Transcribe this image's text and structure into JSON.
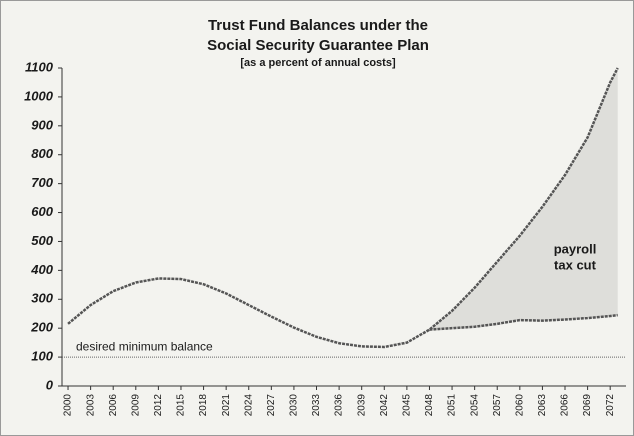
{
  "chart_data": {
    "type": "line",
    "title": [
      "Trust Fund Balances under the",
      "Social Security Guarantee Plan"
    ],
    "subtitle": "[as a percent of annual costs]",
    "x": [
      2000,
      2003,
      2006,
      2009,
      2012,
      2015,
      2018,
      2021,
      2024,
      2027,
      2030,
      2033,
      2036,
      2039,
      2042,
      2045,
      2048,
      2051,
      2054,
      2057,
      2060,
      2063,
      2066,
      2069,
      2072,
      2073
    ],
    "series": [
      {
        "color": "#555555",
        "values": [
          215,
          280,
          328,
          358,
          372,
          370,
          352,
          320,
          280,
          240,
          202,
          170,
          148,
          137,
          135,
          150,
          195,
          260,
          340,
          430,
          520,
          620,
          730,
          860,
          1050,
          1100
        ]
      },
      {
        "color": "#555555",
        "values": [
          null,
          null,
          null,
          null,
          null,
          null,
          null,
          null,
          null,
          null,
          null,
          null,
          null,
          null,
          null,
          null,
          195,
          200,
          205,
          215,
          228,
          226,
          230,
          235,
          242,
          245
        ]
      }
    ],
    "fill_between_color": "#d8d8d4",
    "reference_line": {
      "value": 100,
      "label": "desired minimum balance",
      "color": "#666666"
    },
    "annotation": [
      "payroll",
      "tax cut"
    ],
    "xlim": [
      1999.2,
      2074.1
    ],
    "xticks": [
      2000,
      2003,
      2006,
      2009,
      2012,
      2015,
      2018,
      2021,
      2024,
      2027,
      2030,
      2033,
      2036,
      2039,
      2042,
      2045,
      2048,
      2051,
      2054,
      2057,
      2060,
      2063,
      2066,
      2069,
      2072
    ],
    "ylim": [
      0,
      1100
    ],
    "yticks": [
      0,
      100,
      200,
      300,
      400,
      500,
      600,
      700,
      800,
      900,
      1000,
      1100
    ],
    "grid": false
  }
}
